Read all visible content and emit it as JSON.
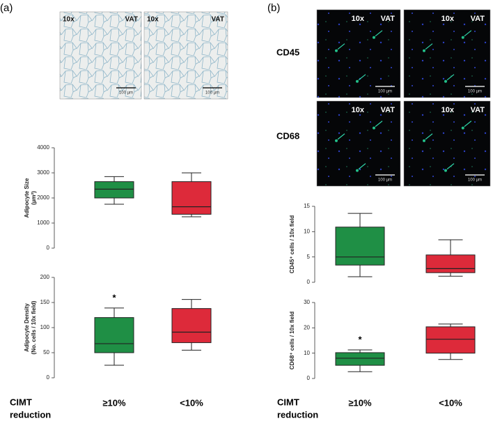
{
  "panels": [
    {
      "label": "(a)",
      "images": [
        {
          "mag": "10x",
          "site": "VAT",
          "scale": "100 µm"
        },
        {
          "mag": "10x",
          "site": "VAT",
          "scale": "100 µm"
        }
      ],
      "x_title_lines": [
        "CIMT",
        "reduction"
      ],
      "categories": [
        "≥10%",
        "<10%"
      ]
    },
    {
      "label": "(b)",
      "rows": [
        {
          "marker": "CD45",
          "images": [
            {
              "mag": "10x",
              "site": "VAT",
              "scale": "100 µm"
            },
            {
              "mag": "10x",
              "site": "VAT",
              "scale": "100 µm"
            }
          ]
        },
        {
          "marker": "CD68",
          "images": [
            {
              "mag": "10x",
              "site": "VAT",
              "scale": "100 µm"
            },
            {
              "mag": "10x",
              "site": "VAT",
              "scale": "100 µm"
            }
          ]
        }
      ],
      "x_title_lines": [
        "CIMT",
        "reduction"
      ],
      "categories": [
        "≥10%",
        "<10%"
      ]
    }
  ],
  "chart_data": [
    {
      "type": "box",
      "ylabel_lines": [
        "Adipocyte Size",
        "(µm²)"
      ],
      "ylim": [
        0,
        4000
      ],
      "yticks": [
        0,
        1000,
        2000,
        3000,
        4000
      ],
      "boxes": [
        {
          "color": "#1f8f45",
          "min": 1750,
          "q1": 2000,
          "median": 2350,
          "q3": 2650,
          "max": 2850
        },
        {
          "color": "#dd2a3a",
          "min": 1250,
          "q1": 1350,
          "median": 1650,
          "q3": 2650,
          "max": 3000
        }
      ]
    },
    {
      "type": "box",
      "ylabel_lines": [
        "Adipocyte Density",
        "(No. cells / 10x field)"
      ],
      "ylim": [
        0,
        200
      ],
      "yticks": [
        0,
        50,
        100,
        150,
        200
      ],
      "boxes": [
        {
          "color": "#1f8f45",
          "min": 25,
          "q1": 50,
          "median": 68,
          "q3": 120,
          "max": 139,
          "label": "*"
        },
        {
          "color": "#dd2a3a",
          "min": 55,
          "q1": 70,
          "median": 91,
          "q3": 138,
          "max": 156
        }
      ]
    },
    {
      "type": "box",
      "ylabel_lines": [
        "CD45⁺ cells / 10x field"
      ],
      "ylim": [
        0,
        15
      ],
      "yticks": [
        0,
        5,
        10,
        15
      ],
      "boxes": [
        {
          "color": "#1f8f45",
          "min": 1.1,
          "q1": 3.4,
          "median": 5,
          "q3": 10.9,
          "max": 13.6
        },
        {
          "color": "#dd2a3a",
          "min": 1.2,
          "q1": 1.9,
          "median": 2.7,
          "q3": 5.4,
          "max": 8.4
        }
      ]
    },
    {
      "type": "box",
      "ylabel_lines": [
        "CD68⁺ cells / 10x field"
      ],
      "ylim": [
        0,
        30
      ],
      "yticks": [
        0,
        10,
        20,
        30
      ],
      "boxes": [
        {
          "color": "#1f8f45",
          "min": 2.7,
          "q1": 5.2,
          "median": 8,
          "q3": 10.2,
          "max": 11.3,
          "label": "*"
        },
        {
          "color": "#dd2a3a",
          "min": 7.5,
          "q1": 10,
          "median": 15.5,
          "q3": 20.4,
          "max": 21.5
        }
      ]
    }
  ]
}
